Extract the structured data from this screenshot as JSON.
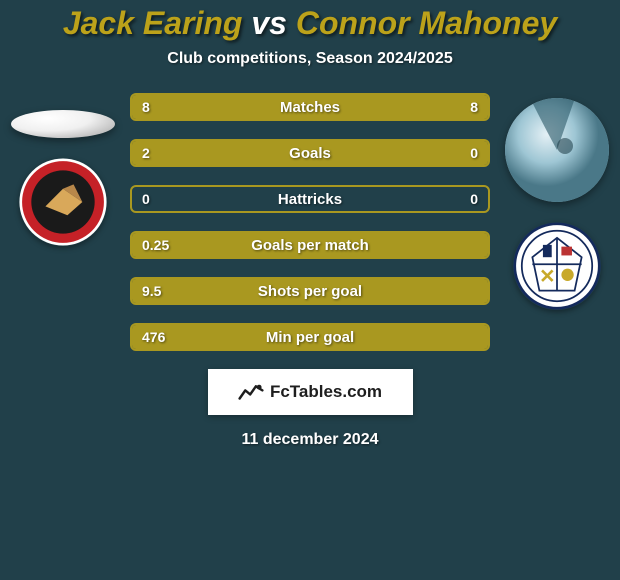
{
  "background_color": "#21404a",
  "title": {
    "player1": "Jack Earing",
    "vs": "vs",
    "player2": "Connor Mahoney",
    "player_color": "#bca21a",
    "vs_color": "#ffffff",
    "fontsize": 32
  },
  "subtitle": {
    "text": "Club competitions, Season 2024/2025",
    "color": "#ffffff",
    "fontsize": 16
  },
  "stats": {
    "bar_base_color": "#21404a",
    "bar_border_color": "#a99820",
    "bar_border_width": 2,
    "bar_border_radius": 6,
    "left_bar_color": "#a99820",
    "right_bar_color": "#a99820",
    "label_color": "#ffffff",
    "value_color": "#ffffff",
    "rows": [
      {
        "label": "Matches",
        "left_val": "8",
        "right_val": "8",
        "left_pct": 50,
        "right_pct": 50
      },
      {
        "label": "Goals",
        "left_val": "2",
        "right_val": "0",
        "left_pct": 100,
        "right_pct": 0
      },
      {
        "label": "Hattricks",
        "left_val": "0",
        "right_val": "0",
        "left_pct": 0,
        "right_pct": 0
      },
      {
        "label": "Goals per match",
        "left_val": "0.25",
        "right_val": "",
        "left_pct": 100,
        "right_pct": 0
      },
      {
        "label": "Shots per goal",
        "left_val": "9.5",
        "right_val": "",
        "left_pct": 100,
        "right_pct": 0
      },
      {
        "label": "Min per goal",
        "left_val": "476",
        "right_val": "",
        "left_pct": 100,
        "right_pct": 0
      }
    ]
  },
  "watermark": {
    "text": "FcTables.com",
    "bg_color": "#ffffff",
    "text_color": "#1e1e1e",
    "fontsize": 17
  },
  "date": {
    "text": "11 december 2024",
    "color": "#ffffff",
    "fontsize": 16
  },
  "clubs": {
    "left": {
      "name": "Walsall FC",
      "bg_color": "#c52127",
      "ring_color": "#ffffff",
      "accent_color": "#1a1a1a"
    },
    "right": {
      "name": "Barrow AFC",
      "bg_color": "#ffffff",
      "ring_color": "#142a5c",
      "accent_color": "#c8a92a"
    }
  }
}
